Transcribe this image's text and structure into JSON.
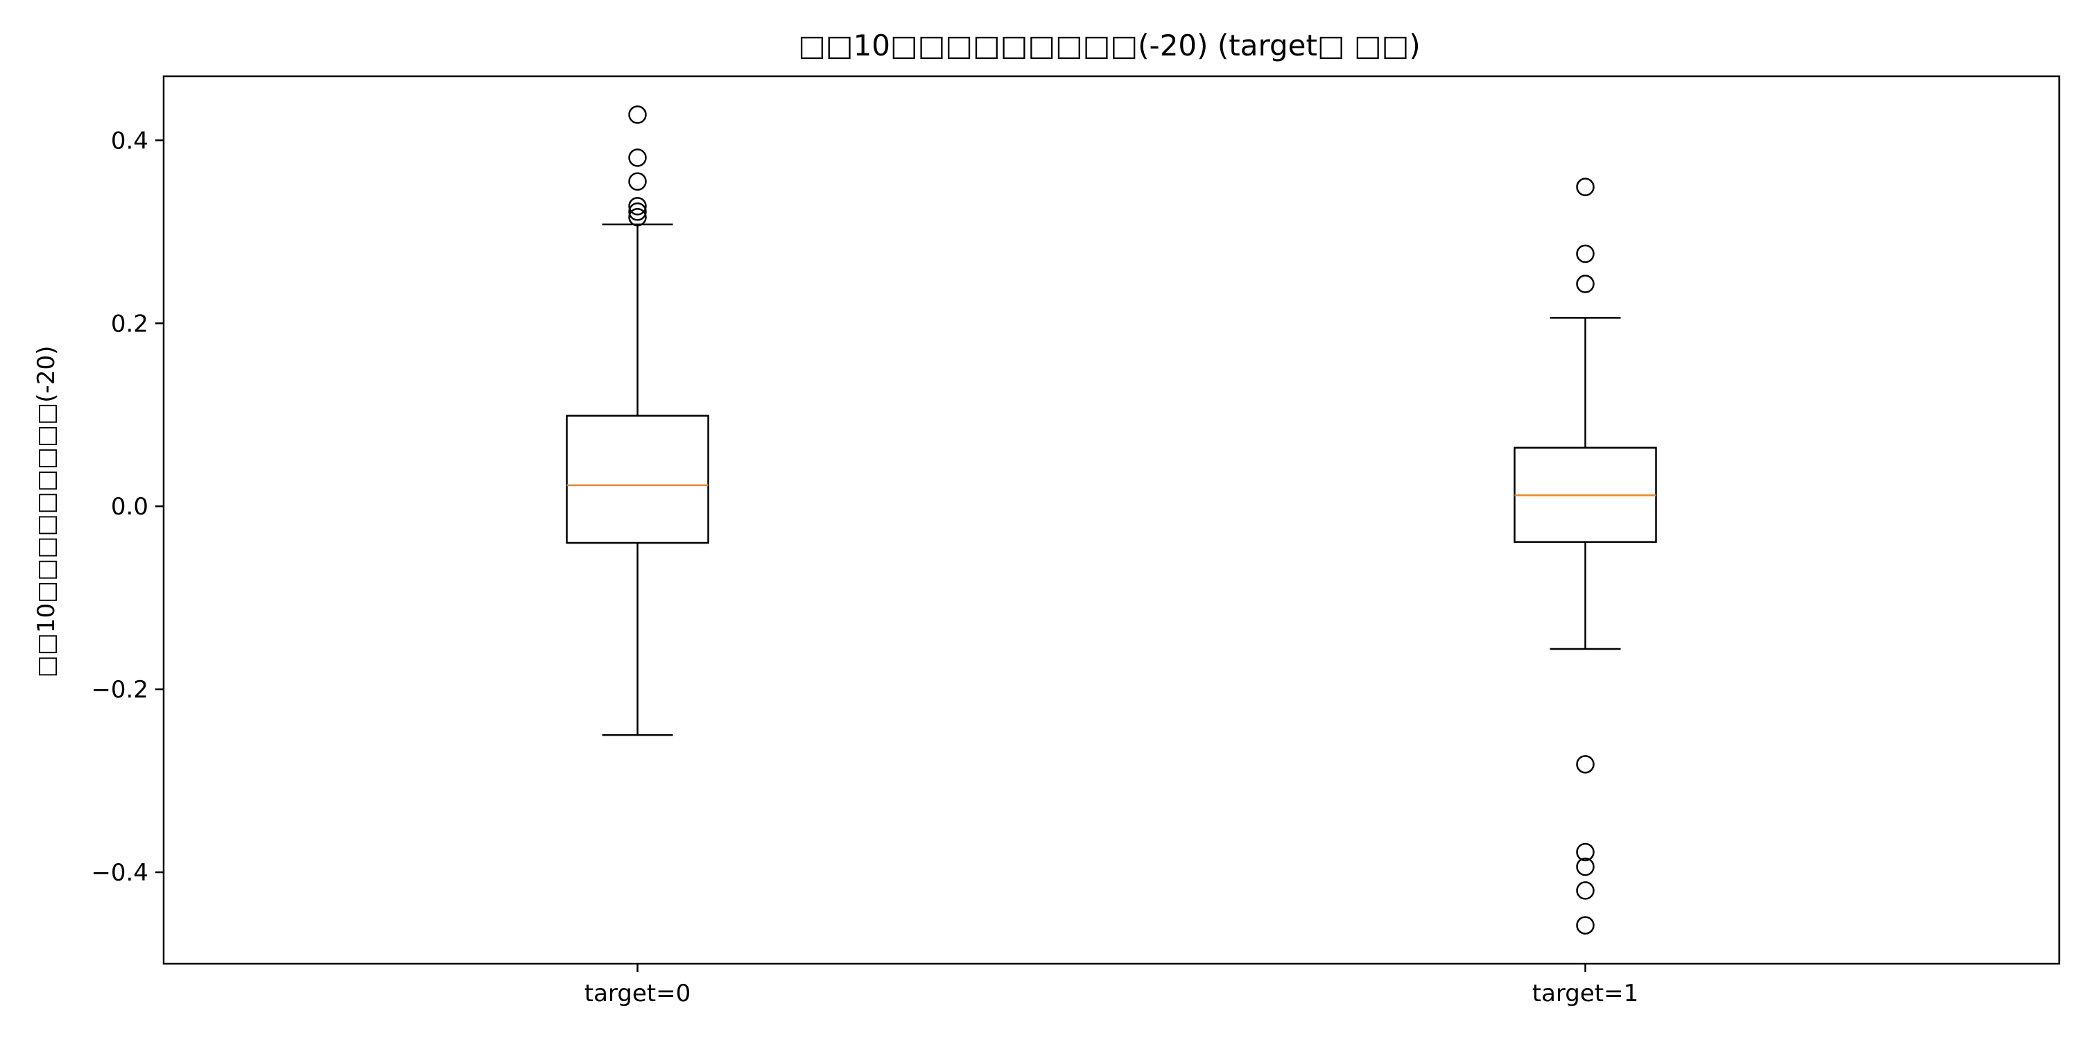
{
  "chart_data": {
    "type": "box",
    "title": "□□10□□□□□□□□□(-20) (target□ □□)",
    "xlabel": "",
    "ylabel": "□□10□□□□□□□□□(-20)",
    "categories": [
      "target=0",
      "target=1"
    ],
    "ylim": [
      -0.5,
      0.47
    ],
    "yticks": [
      -0.4,
      -0.2,
      0.0,
      0.2,
      0.4
    ],
    "ytick_labels": [
      "−0.4",
      "−0.2",
      "0.0",
      "0.2",
      "0.4"
    ],
    "boxes": [
      {
        "category": "target=0",
        "whisker_low": -0.25,
        "q1": -0.04,
        "median": 0.023,
        "q3": 0.099,
        "whisker_high": 0.308,
        "outliers": [
          0.428,
          0.381,
          0.355,
          0.328,
          0.322,
          0.316
        ]
      },
      {
        "category": "target=1",
        "whisker_low": -0.156,
        "q1": -0.039,
        "median": 0.012,
        "q3": 0.064,
        "whisker_high": 0.206,
        "outliers": [
          0.349,
          0.276,
          0.243,
          -0.282,
          -0.378,
          -0.394,
          -0.42,
          -0.458
        ]
      }
    ],
    "colors": {
      "box": "#000000",
      "median": "#ff7f0e",
      "background": "#ffffff"
    },
    "grid": false
  }
}
